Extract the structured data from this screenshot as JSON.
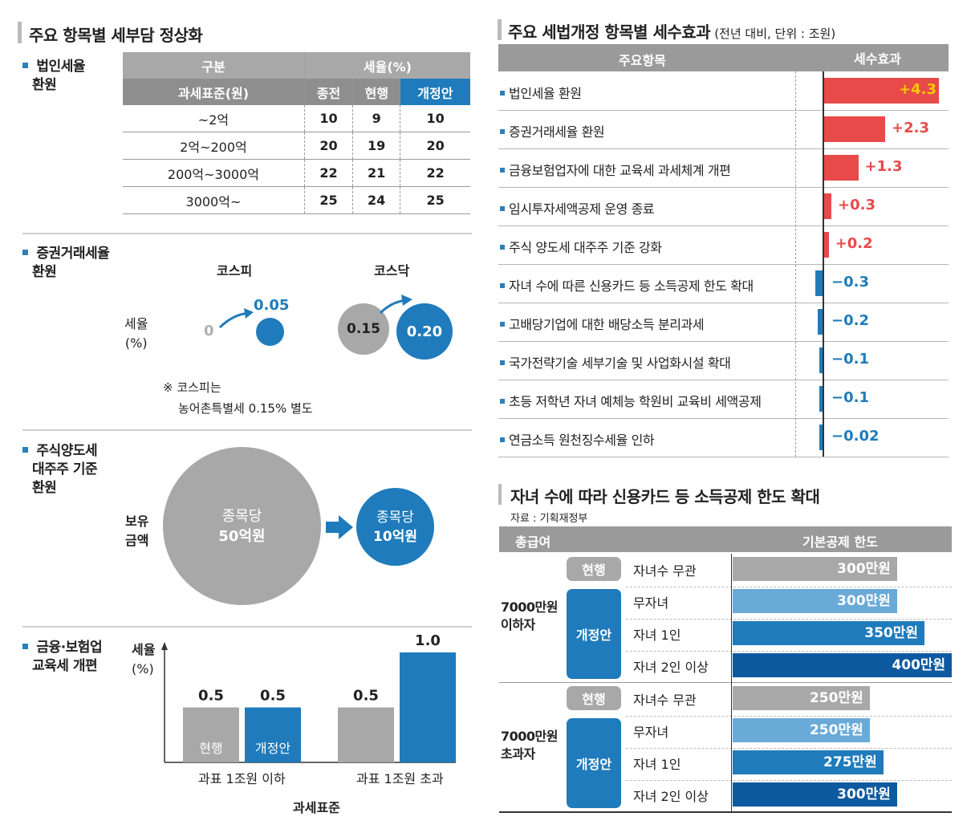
{
  "left": {
    "title": "주요 항목별 세부담 정상화",
    "corp": {
      "label_line1": "법인세율",
      "label_line2": "환원",
      "header_gubun": "구분",
      "header_rate": "세율(%)",
      "header_base": "과세표준(원)",
      "header_prev": "종전",
      "header_curr": "현행",
      "header_rev": "개정안",
      "rows": [
        {
          "cat": "~2억",
          "prev": "10",
          "curr": "9",
          "rev": "10"
        },
        {
          "cat": "2억~200억",
          "prev": "20",
          "curr": "19",
          "rev": "20"
        },
        {
          "cat": "200억~3000억",
          "prev": "22",
          "curr": "21",
          "rev": "22"
        },
        {
          "cat": "3000억~",
          "prev": "25",
          "curr": "24",
          "rev": "25"
        }
      ]
    },
    "securities": {
      "label_line1": "증권거래세율",
      "label_line2": "환원",
      "axis_line1": "세율",
      "axis_line2": "(%)",
      "kospi": {
        "name": "코스피",
        "before": "0",
        "after": "0.05"
      },
      "kosdaq": {
        "name": "코스닥",
        "before": "0.15",
        "after": "0.20"
      },
      "note_line1": "※ 코스피는",
      "note_line2": "농어촌특별세 0.15% 별도"
    },
    "stock": {
      "label_line1": "주식양도세",
      "label_line2": "대주주 기준",
      "label_line3": "환원",
      "axis_line1": "보유",
      "axis_line2": "금액",
      "before_line1": "종목당",
      "before_line2": "50억원",
      "after_line1": "종목당",
      "after_line2": "10억원"
    },
    "finance": {
      "label_line1": "금융·보험업",
      "label_line2": "교육세 개편",
      "axis_line1": "세율",
      "axis_line2": "(%)",
      "xlabel": "과세표준",
      "groups": [
        {
          "name": "과표 1조원 이하"
        },
        {
          "name": "과표 1조원 초과"
        }
      ],
      "tag_curr": "현행",
      "tag_rev": "개정안"
    }
  },
  "right": {
    "title": "주요 세법개정 항목별 세수효과",
    "title_sub": "(전년 대비, 단위 : 조원)",
    "col_item": "주요항목",
    "col_effect": "세수효과",
    "card": {
      "title": "자녀 수에 따라 신용카드 등 소득공제 한도 확대",
      "source": "자료 : 기획재정부",
      "col_income": "총급여",
      "col_limit": "기본공제 한도",
      "tag_curr": "현행",
      "tag_rev": "개정안",
      "groups": [
        {
          "name_line1": "7000만원",
          "name_line2": "이하자",
          "rows": [
            {
              "label": "자녀수 무관",
              "value": "300만원",
              "amount": 300,
              "type": "curr"
            },
            {
              "label": "무자녀",
              "value": "300만원",
              "amount": 300,
              "type": "rev0"
            },
            {
              "label": "자녀 1인",
              "value": "350만원",
              "amount": 350,
              "type": "rev1"
            },
            {
              "label": "자녀 2인 이상",
              "value": "400만원",
              "amount": 400,
              "type": "rev2"
            }
          ]
        },
        {
          "name_line1": "7000만원",
          "name_line2": "초과자",
          "rows": [
            {
              "label": "자녀수 무관",
              "value": "250만원",
              "amount": 250,
              "type": "curr"
            },
            {
              "label": "무자녀",
              "value": "250만원",
              "amount": 250,
              "type": "rev0"
            },
            {
              "label": "자녀 1인",
              "value": "275만원",
              "amount": 275,
              "type": "rev1"
            },
            {
              "label": "자녀 2인 이상",
              "value": "300만원",
              "amount": 300,
              "type": "rev2"
            }
          ]
        }
      ]
    }
  },
  "colors": {
    "blue": "#1f7bbb",
    "dark_blue": "#0d5aa0",
    "light_blue": "#6aaad8",
    "gray": "#a8a8a8",
    "red": "#e84a4a",
    "orange_text": "#f5c800"
  },
  "chart_data": [
    {
      "type": "bar",
      "title": "주요 세법개정 항목별 세수효과",
      "ylabel": "세수효과 (조원)",
      "categories": [
        "법인세율 환원",
        "증권거래세율 환원",
        "금융보험업자에 대한 교육세 과세체계 개편",
        "임시투자세액공제 운영 종료",
        "주식 양도세 대주주 기준 강화",
        "자녀 수에 따른 신용카드 등 소득공제 한도 확대",
        "고배당기업에 대한 배당소득 분리과세",
        "국가전략기술 세부기술 및 사업화시설 확대",
        "초등 저학년 자녀 예체능 학원비 교육비 세액공제",
        "연금소득 원천징수세율 인하"
      ],
      "values": [
        4.3,
        2.3,
        1.3,
        0.3,
        0.2,
        -0.3,
        -0.2,
        -0.1,
        -0.1,
        -0.02
      ],
      "labels": [
        "+4.3",
        "+2.3",
        "+1.3",
        "+0.3",
        "+0.2",
        "−0.3",
        "−0.2",
        "−0.1",
        "−0.1",
        "−0.02"
      ]
    },
    {
      "type": "bar",
      "title": "금융·보험업 교육세 개편",
      "xlabel": "과세표준",
      "ylabel": "세율(%)",
      "categories": [
        "과표 1조원 이하",
        "과표 1조원 초과"
      ],
      "series": [
        {
          "name": "현행",
          "values": [
            0.5,
            0.5
          ],
          "labels": [
            "0.5",
            "0.5"
          ]
        },
        {
          "name": "개정안",
          "values": [
            0.5,
            1.0
          ],
          "labels": [
            "0.5",
            "1.0"
          ]
        }
      ]
    }
  ]
}
